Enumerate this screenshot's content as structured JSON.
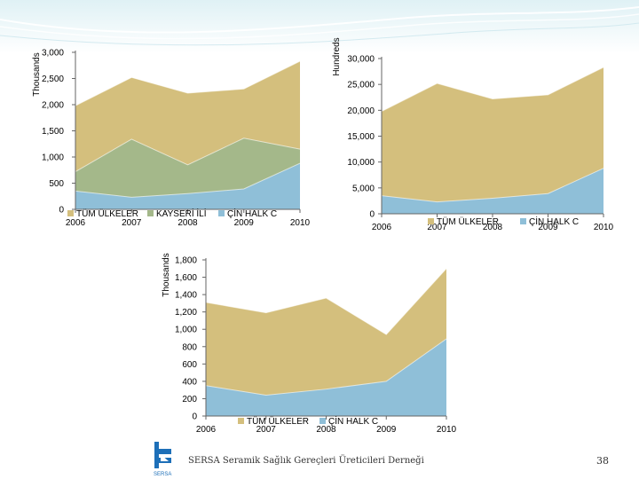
{
  "colors": {
    "tum": "#d4bf7d",
    "kayseri": "#a4b88a",
    "cin": "#8fbfd8",
    "axis": "#666666"
  },
  "footer": {
    "text": "SERSA Seramik Sağlık Gereçleri Üreticileri Derneği",
    "page": "38"
  },
  "chart_data": [
    {
      "id": "chart1",
      "type": "area",
      "ylabel": "Thousands",
      "categories": [
        "2006",
        "2007",
        "2008",
        "2009",
        "2010"
      ],
      "ylim": [
        0,
        3000
      ],
      "yticks": [
        "0",
        "500",
        "1,000",
        "1,500",
        "2,000",
        "2,500",
        "3,000"
      ],
      "series": [
        {
          "name": "TÜM ÜLKELER",
          "values": [
            1980,
            2520,
            2220,
            2300,
            2830
          ]
        },
        {
          "name": "KAYSERİ İLİ",
          "values": [
            720,
            1340,
            850,
            1360,
            1150
          ]
        },
        {
          "name": "ÇİN HALK C",
          "values": [
            350,
            230,
            300,
            390,
            880
          ]
        }
      ]
    },
    {
      "id": "chart2",
      "type": "area",
      "ylabel": "Hundreds",
      "categories": [
        "2006",
        "2007",
        "2008",
        "2009",
        "2010"
      ],
      "ylim": [
        0,
        30000
      ],
      "yticks": [
        "0",
        "5,000",
        "10,000",
        "15,000",
        "20,000",
        "25,000",
        "30,000"
      ],
      "series": [
        {
          "name": "TÜM ÜLKELER",
          "values": [
            19800,
            25200,
            22200,
            23000,
            28300
          ]
        },
        {
          "name": "ÇİN HALK C",
          "values": [
            3500,
            2300,
            3000,
            3900,
            8800
          ]
        }
      ]
    },
    {
      "id": "chart3",
      "type": "area",
      "ylabel": "Thousands",
      "categories": [
        "2006",
        "2007",
        "2008",
        "2009",
        "2010"
      ],
      "ylim": [
        0,
        1800
      ],
      "yticks": [
        "0",
        "200",
        "400",
        "600",
        "800",
        "1,000",
        "1,200",
        "1,400",
        "1,600",
        "1,800"
      ],
      "series": [
        {
          "name": "TÜM ÜLKELER",
          "values": [
            1310,
            1190,
            1360,
            940,
            1700
          ]
        },
        {
          "name": "ÇİN HALK C",
          "values": [
            350,
            240,
            310,
            400,
            890
          ]
        }
      ]
    }
  ]
}
